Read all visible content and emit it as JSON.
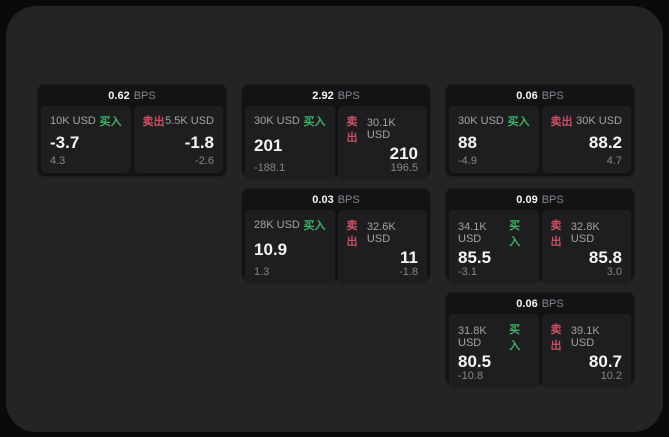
{
  "theme": {
    "outer_bg": "#0a0a0b",
    "panel_bg": "#242427",
    "card_bg": "#131316",
    "pane_bg": "#1e1e21",
    "buy_color": "#3cb567",
    "sell_color": "#c94f63"
  },
  "cards": [
    {
      "bps": "0.62",
      "bps_unit": "BPS",
      "buy": {
        "amount": "10K USD",
        "side_label": "买入",
        "price": "-3.7",
        "delta": "4.3"
      },
      "sell": {
        "amount": "5.5K USD",
        "side_label": "卖出",
        "price": "-1.8",
        "delta": "-2.6"
      }
    },
    {
      "bps": "2.92",
      "bps_unit": "BPS",
      "buy": {
        "amount": "30K USD",
        "side_label": "买入",
        "price": "201",
        "delta": "-188.1"
      },
      "sell": {
        "amount": "30.1K USD",
        "side_label": "卖出",
        "price": "210",
        "delta": "196.5"
      }
    },
    {
      "bps": "0.06",
      "bps_unit": "BPS",
      "buy": {
        "amount": "30K USD",
        "side_label": "买入",
        "price": "88",
        "delta": "-4.9"
      },
      "sell": {
        "amount": "30K USD",
        "side_label": "卖出",
        "price": "88.2",
        "delta": "4.7"
      }
    },
    {
      "bps": "0.03",
      "bps_unit": "BPS",
      "buy": {
        "amount": "28K USD",
        "side_label": "买入",
        "price": "10.9",
        "delta": "1.3"
      },
      "sell": {
        "amount": "32.6K USD",
        "side_label": "卖出",
        "price": "11",
        "delta": "-1.8"
      }
    },
    {
      "bps": "0.09",
      "bps_unit": "BPS",
      "buy": {
        "amount": "34.1K USD",
        "side_label": "买入",
        "price": "85.5",
        "delta": "-3.1"
      },
      "sell": {
        "amount": "32.8K USD",
        "side_label": "卖出",
        "price": "85.8",
        "delta": "3.0"
      }
    },
    {
      "bps": "0.06",
      "bps_unit": "BPS",
      "buy": {
        "amount": "31.8K USD",
        "side_label": "买入",
        "price": "80.5",
        "delta": "-10.8"
      },
      "sell": {
        "amount": "39.1K USD",
        "side_label": "卖出",
        "price": "80.7",
        "delta": "10.2"
      }
    }
  ]
}
